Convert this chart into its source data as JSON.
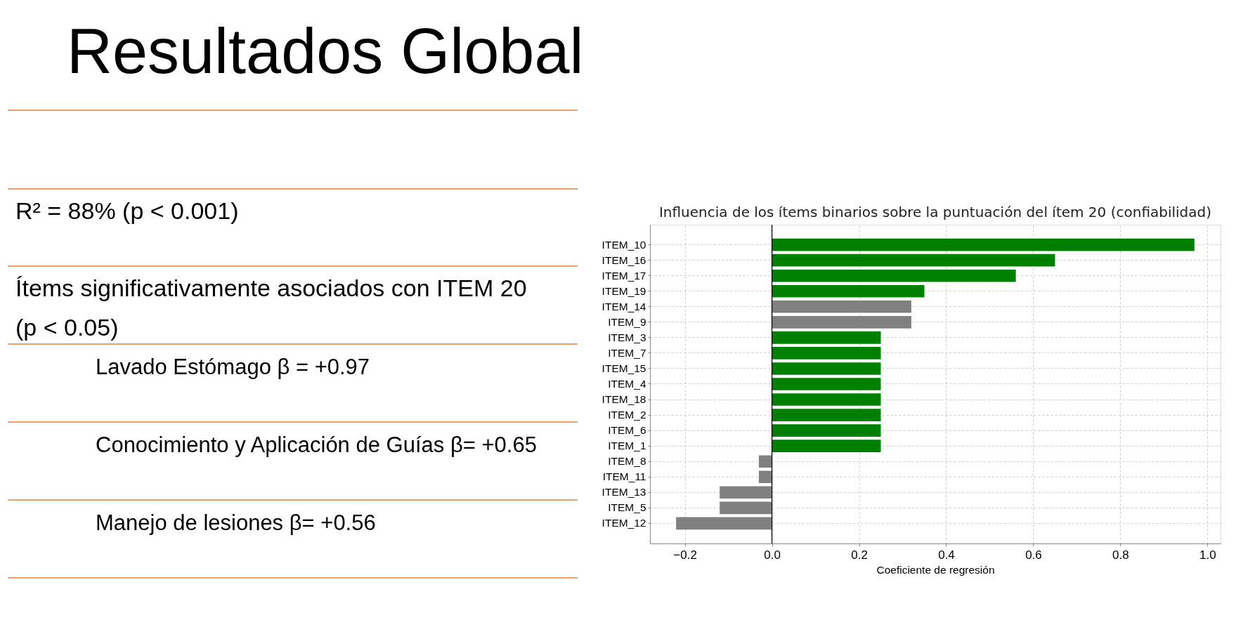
{
  "chart_data": [
    {
      "type": "other",
      "title": "Resultados Global",
      "annotations": [
        "R² = 88% (p < 0.001)",
        "Ítems significativamente asociados con ITEM 20 (p < 0.05)",
        "Lavado Estómago β = +0.97",
        "Conocimiento y Aplicación de Guías β= +0.65",
        "Manejo de lesiones β= +0.56"
      ]
    },
    {
      "type": "bar",
      "orientation": "horizontal",
      "title": "Influencia de los ítems binarios sobre la puntuación del ítem 20 (confiabilidad)",
      "xlabel": "Coeficiente de regresión",
      "categories": [
        "ITEM_10",
        "ITEM_16",
        "ITEM_17",
        "ITEM_19",
        "ITEM_14",
        "ITEM_9",
        "ITEM_3",
        "ITEM_7",
        "ITEM_15",
        "ITEM_4",
        "ITEM_18",
        "ITEM_2",
        "ITEM_6",
        "ITEM_1",
        "ITEM_8",
        "ITEM_11",
        "ITEM_13",
        "ITEM_5",
        "ITEM_12"
      ],
      "values": [
        0.97,
        0.65,
        0.56,
        0.35,
        0.32,
        0.32,
        0.25,
        0.25,
        0.25,
        0.25,
        0.25,
        0.25,
        0.25,
        0.25,
        -0.03,
        -0.03,
        -0.12,
        -0.12,
        -0.22
      ],
      "colors": [
        "#008000",
        "#008000",
        "#008000",
        "#008000",
        "#808080",
        "#808080",
        "#008000",
        "#008000",
        "#008000",
        "#008000",
        "#008000",
        "#008000",
        "#008000",
        "#008000",
        "#808080",
        "#808080",
        "#808080",
        "#808080",
        "#808080"
      ],
      "xlim": [
        -0.28,
        1.03
      ],
      "xticks": [
        {
          "value": -0.2,
          "label": "−0.2"
        },
        {
          "value": 0,
          "label": "0.0"
        },
        {
          "value": 0.2,
          "label": "0.2"
        },
        {
          "value": 0.4,
          "label": "0.4"
        },
        {
          "value": 0.6,
          "label": "0.6"
        },
        {
          "value": 0.8,
          "label": "0.8"
        },
        {
          "value": 1,
          "label": "1.0"
        }
      ],
      "ref_lines": [
        {
          "axis": "x",
          "value": 0,
          "color": "#000000"
        }
      ],
      "grid": true
    }
  ]
}
